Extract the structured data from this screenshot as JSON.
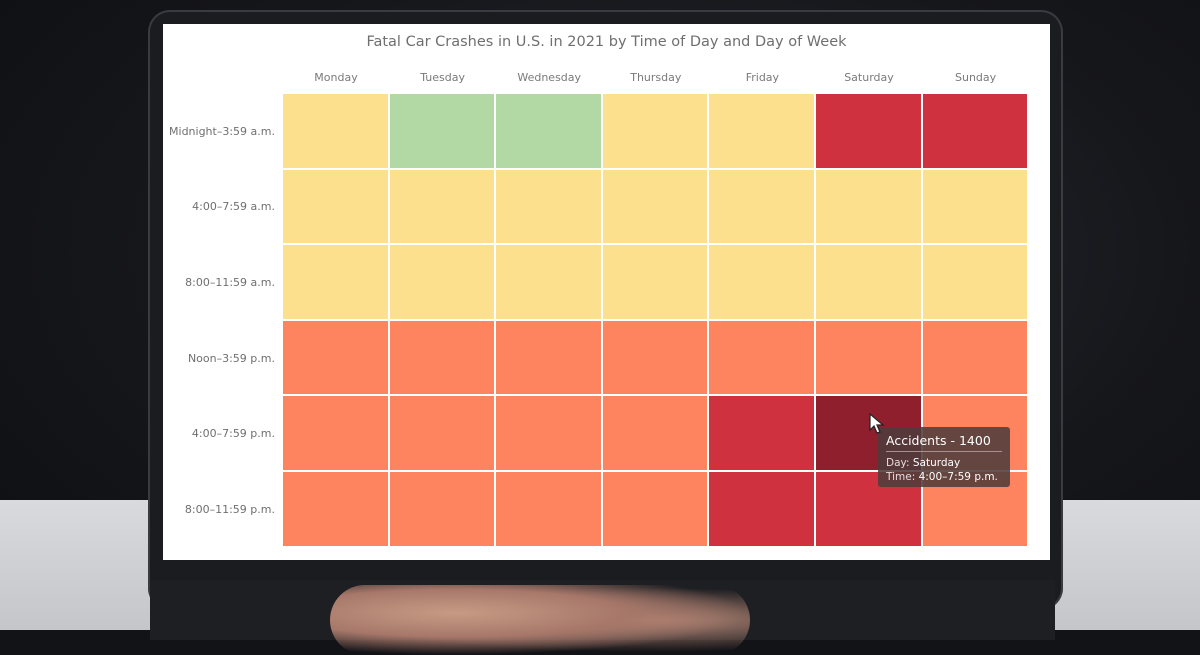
{
  "chart_data": {
    "type": "heatmap",
    "title": "Fatal Car Crashes in U.S. in 2021 by Time of Day and Day of Week",
    "columns": [
      "Monday",
      "Tuesday",
      "Wednesday",
      "Thursday",
      "Friday",
      "Saturday",
      "Sunday"
    ],
    "rows": [
      "Midnight–3:59 a.m.",
      "4:00–7:59 a.m.",
      "8:00–11:59 a.m.",
      "Noon–3:59 p.m.",
      "4:00–7:59 p.m.",
      "8:00–11:59 p.m."
    ],
    "cell_colors": [
      [
        "#fde08d",
        "#b2d8a4",
        "#b2d8a4",
        "#fde08d",
        "#fde08d",
        "#cf313f",
        "#cf313f"
      ],
      [
        "#fde08d",
        "#fde08d",
        "#fde08d",
        "#fde08d",
        "#fde08d",
        "#fde08d",
        "#fde08d"
      ],
      [
        "#fde08d",
        "#fde08d",
        "#fde08d",
        "#fde08d",
        "#fde08d",
        "#fde08d",
        "#fde08d"
      ],
      [
        "#fe835f",
        "#fe835f",
        "#fe835f",
        "#fe835f",
        "#fe835f",
        "#fe835f",
        "#fe835f"
      ],
      [
        "#fe835f",
        "#fe835f",
        "#fe835f",
        "#fe835f",
        "#cf313f",
        "#8f1f2c",
        "#fe835f"
      ],
      [
        "#fe835f",
        "#fe835f",
        "#fe835f",
        "#fe835f",
        "#cf313f",
        "#cf313f",
        "#fe835f"
      ]
    ],
    "hovered_cell": {
      "row": 4,
      "column": 5
    }
  },
  "tooltip": {
    "title": "Accidents - 1400",
    "day_label": "Day:",
    "day_value": "Saturday",
    "time_label": "Time:",
    "time_value": "4:00–7:59 p.m."
  },
  "icons": {
    "cursor": "cursor-arrow-icon"
  }
}
